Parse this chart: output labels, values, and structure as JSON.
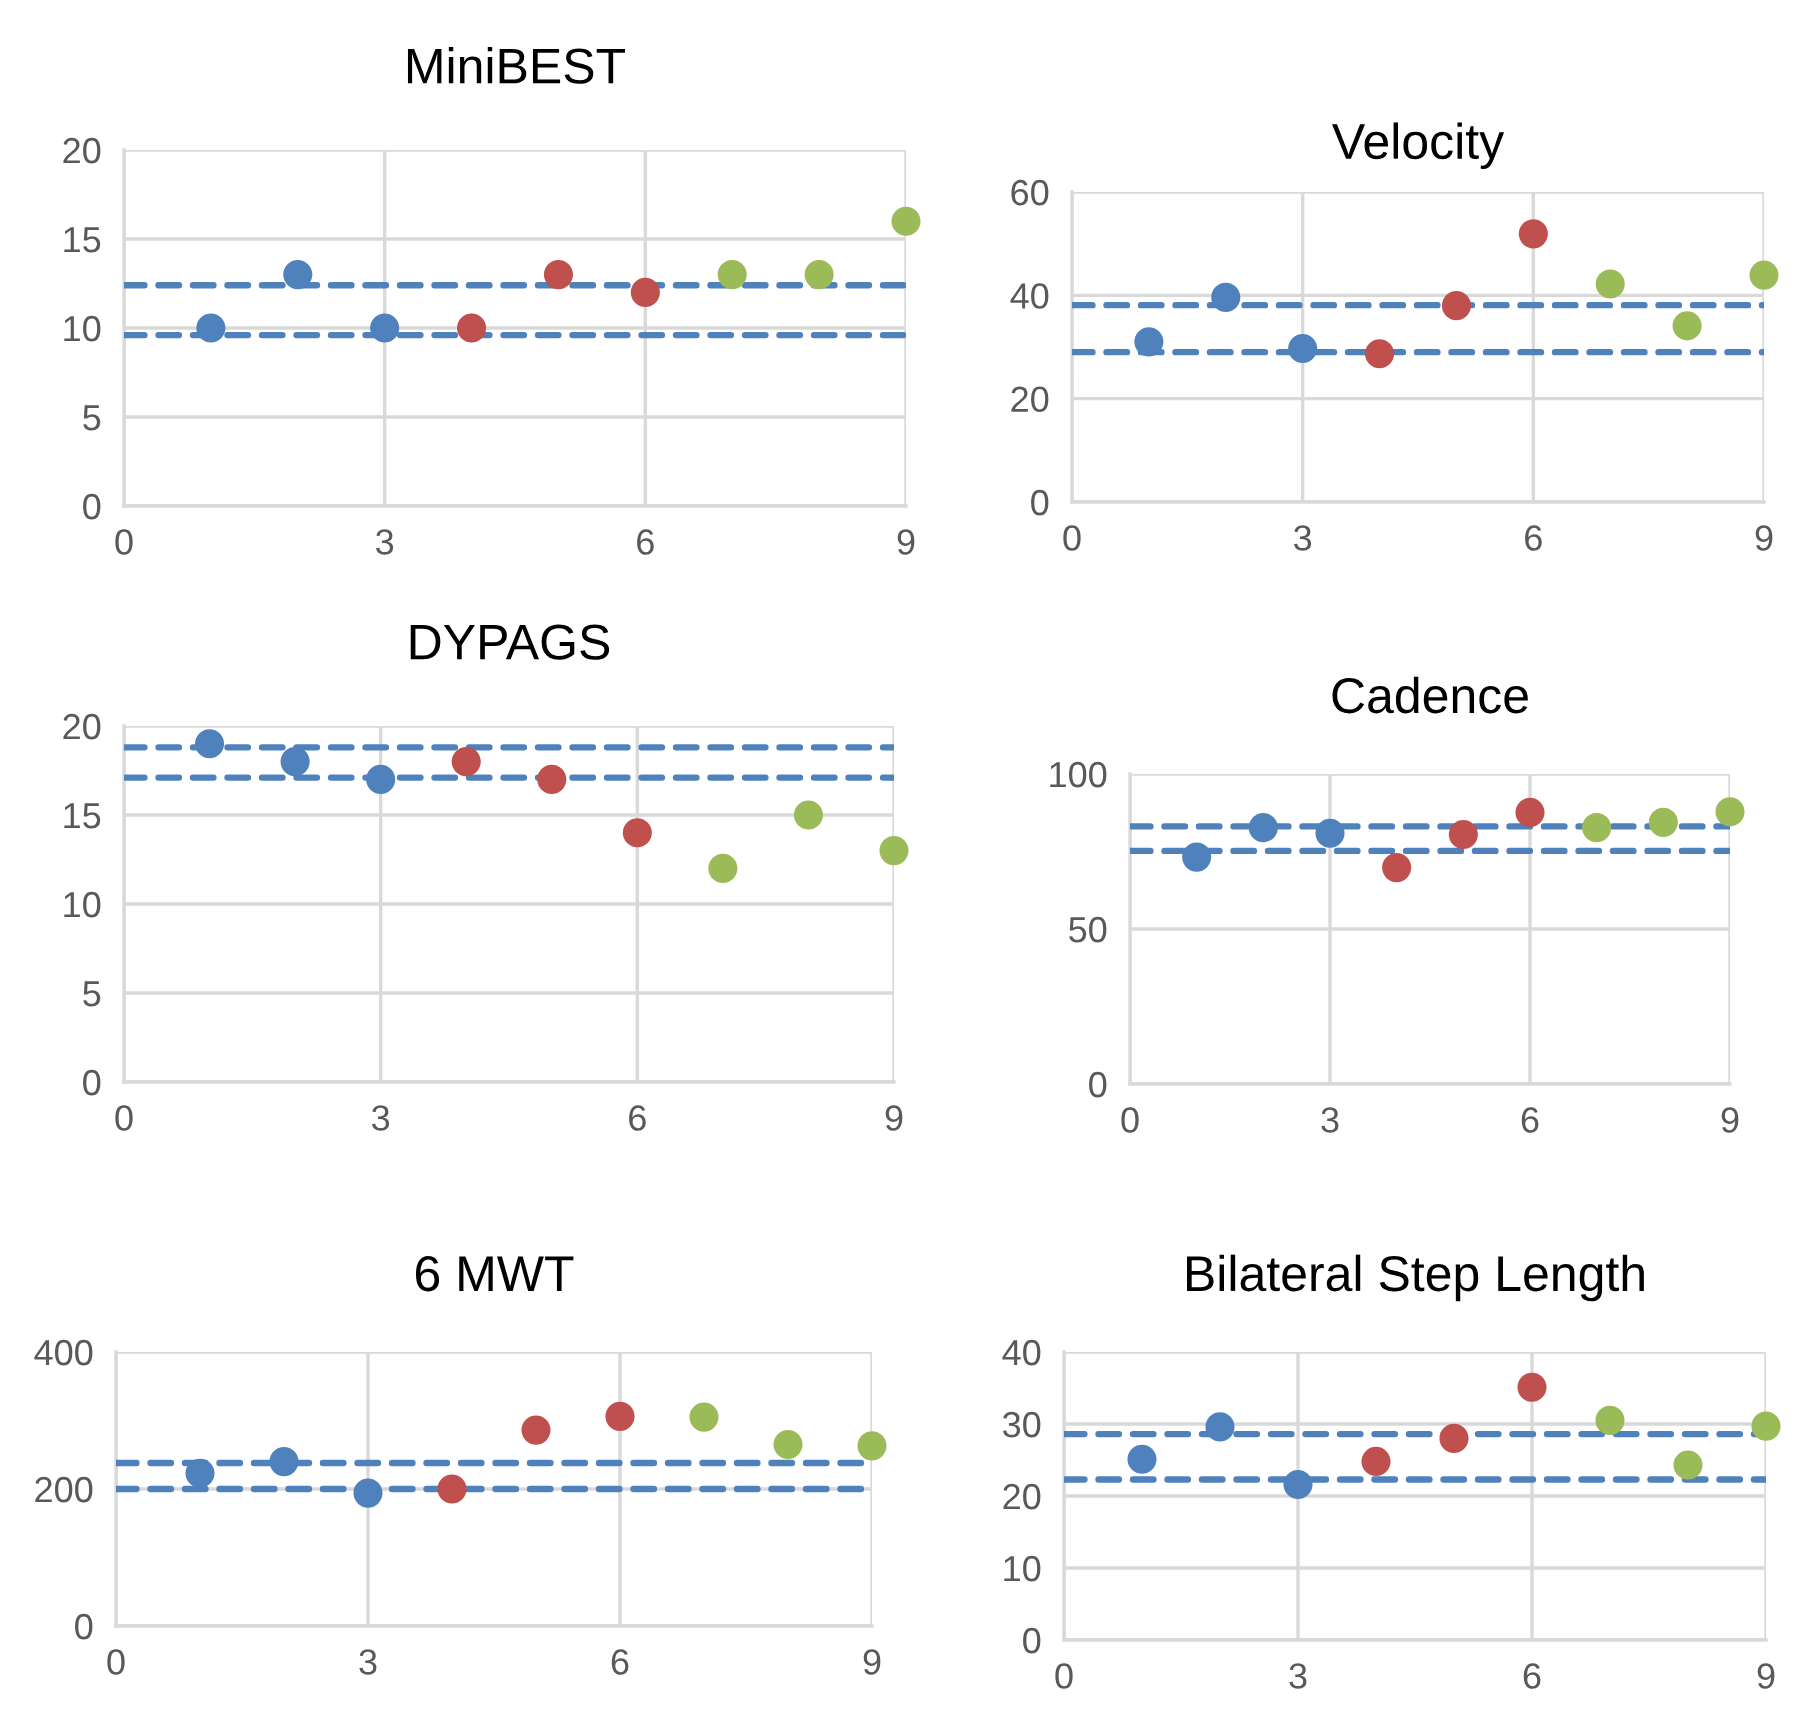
{
  "chart_data": [
    {
      "type": "scatter",
      "title": "MiniBEST",
      "xlim": [
        0,
        9
      ],
      "xticks": [
        0,
        3,
        6,
        9
      ],
      "ylim": [
        0,
        20
      ],
      "yticks": [
        0,
        5,
        10,
        15,
        20
      ],
      "grid": true,
      "marker": "circle",
      "series": [
        {
          "color": "#4f81bd",
          "x": [
            1,
            2,
            3
          ],
          "values": [
            10,
            13,
            10
          ]
        },
        {
          "color": "#c0504d",
          "x": [
            4,
            5,
            6
          ],
          "values": [
            10,
            13,
            12
          ]
        },
        {
          "color": "#9bbb59",
          "x": [
            7,
            8,
            9
          ],
          "values": [
            13,
            13,
            16
          ]
        }
      ],
      "ref_lines": [
        {
          "axis": "y",
          "value": 12.4,
          "color": "#4f81bd",
          "line_style": "dashed"
        },
        {
          "axis": "y",
          "value": 9.6,
          "color": "#4f81bd",
          "line_style": "dashed"
        }
      ]
    },
    {
      "type": "scatter",
      "title": "Velocity",
      "xlim": [
        0,
        9
      ],
      "xticks": [
        0,
        3,
        6,
        9
      ],
      "ylim": [
        0,
        60
      ],
      "yticks": [
        0,
        20,
        40,
        60
      ],
      "grid": true,
      "marker": "circle",
      "series": [
        {
          "color": "#4f81bd",
          "x": [
            1,
            2,
            3
          ],
          "values": [
            31,
            39.6,
            29.7
          ]
        },
        {
          "color": "#c0504d",
          "x": [
            4,
            5,
            6
          ],
          "values": [
            28.7,
            38,
            51.9
          ]
        },
        {
          "color": "#9bbb59",
          "x": [
            7,
            8,
            9
          ],
          "values": [
            42.2,
            34.1,
            43.9
          ]
        }
      ],
      "ref_lines": [
        {
          "axis": "y",
          "value": 38.1,
          "color": "#4f81bd",
          "line_style": "dashed"
        },
        {
          "axis": "y",
          "value": 29,
          "color": "#4f81bd",
          "line_style": "dashed"
        }
      ]
    },
    {
      "type": "scatter",
      "title": "DYPAGS",
      "xlim": [
        0,
        9
      ],
      "xticks": [
        0,
        3,
        6,
        9
      ],
      "ylim": [
        0,
        20
      ],
      "yticks": [
        0,
        5,
        10,
        15,
        20
      ],
      "grid": true,
      "marker": "circle",
      "series": [
        {
          "color": "#4f81bd",
          "x": [
            1,
            2,
            3
          ],
          "values": [
            19,
            18,
            17
          ]
        },
        {
          "color": "#c0504d",
          "x": [
            4,
            5,
            6
          ],
          "values": [
            18,
            17,
            14
          ]
        },
        {
          "color": "#9bbb59",
          "x": [
            7,
            8,
            9
          ],
          "values": [
            12,
            15,
            13
          ]
        }
      ],
      "ref_lines": [
        {
          "axis": "y",
          "value": 18.8,
          "color": "#4f81bd",
          "line_style": "dashed"
        },
        {
          "axis": "y",
          "value": 17.1,
          "color": "#4f81bd",
          "line_style": "dashed"
        }
      ]
    },
    {
      "type": "scatter",
      "title": "Cadence",
      "xlim": [
        0,
        9
      ],
      "xticks": [
        0,
        3,
        6,
        9
      ],
      "ylim": [
        0,
        100
      ],
      "yticks": [
        0,
        50,
        100
      ],
      "grid": true,
      "marker": "circle",
      "series": [
        {
          "color": "#4f81bd",
          "x": [
            1,
            2,
            3
          ],
          "values": [
            73.2,
            82.7,
            80.9
          ]
        },
        {
          "color": "#c0504d",
          "x": [
            4,
            5,
            6
          ],
          "values": [
            69.8,
            80.5,
            87.6
          ]
        },
        {
          "color": "#9bbb59",
          "x": [
            7,
            8,
            9
          ],
          "values": [
            82.7,
            84.4,
            87.8
          ]
        }
      ],
      "ref_lines": [
        {
          "axis": "y",
          "value": 83.1,
          "color": "#4f81bd",
          "line_style": "dashed"
        },
        {
          "axis": "y",
          "value": 75.2,
          "color": "#4f81bd",
          "line_style": "dashed"
        }
      ]
    },
    {
      "type": "scatter",
      "title": "6 MWT",
      "xlim": [
        0,
        9
      ],
      "xticks": [
        0,
        3,
        6,
        9
      ],
      "ylim": [
        0,
        400
      ],
      "yticks": [
        0,
        200,
        400
      ],
      "grid": true,
      "marker": "circle",
      "series": [
        {
          "color": "#4f81bd",
          "x": [
            1,
            2,
            3
          ],
          "values": [
            223,
            240,
            194
          ]
        },
        {
          "color": "#c0504d",
          "x": [
            4,
            5,
            6
          ],
          "values": [
            200,
            286,
            306
          ]
        },
        {
          "color": "#9bbb59",
          "x": [
            7,
            8,
            9
          ],
          "values": [
            305,
            265,
            263
          ]
        }
      ],
      "ref_lines": [
        {
          "axis": "y",
          "value": 238,
          "color": "#4f81bd",
          "line_style": "dashed"
        },
        {
          "axis": "y",
          "value": 200,
          "color": "#4f81bd",
          "line_style": "dashed"
        }
      ]
    },
    {
      "type": "scatter",
      "title": "Bilateral Step Length",
      "xlim": [
        0,
        9
      ],
      "xticks": [
        0,
        3,
        6,
        9
      ],
      "ylim": [
        0,
        40
      ],
      "yticks": [
        0,
        10,
        20,
        30,
        40
      ],
      "grid": true,
      "marker": "circle",
      "series": [
        {
          "color": "#4f81bd",
          "x": [
            1,
            2,
            3
          ],
          "values": [
            25.1,
            29.6,
            21.6
          ]
        },
        {
          "color": "#c0504d",
          "x": [
            4,
            5,
            6
          ],
          "values": [
            24.8,
            28,
            35.1
          ]
        },
        {
          "color": "#9bbb59",
          "x": [
            7,
            8,
            9
          ],
          "values": [
            30.5,
            24.3,
            29.7
          ]
        }
      ],
      "ref_lines": [
        {
          "axis": "y",
          "value": 28.6,
          "color": "#4f81bd",
          "line_style": "dashed"
        },
        {
          "axis": "y",
          "value": 22.3,
          "color": "#4f81bd",
          "line_style": "dashed"
        }
      ]
    }
  ]
}
